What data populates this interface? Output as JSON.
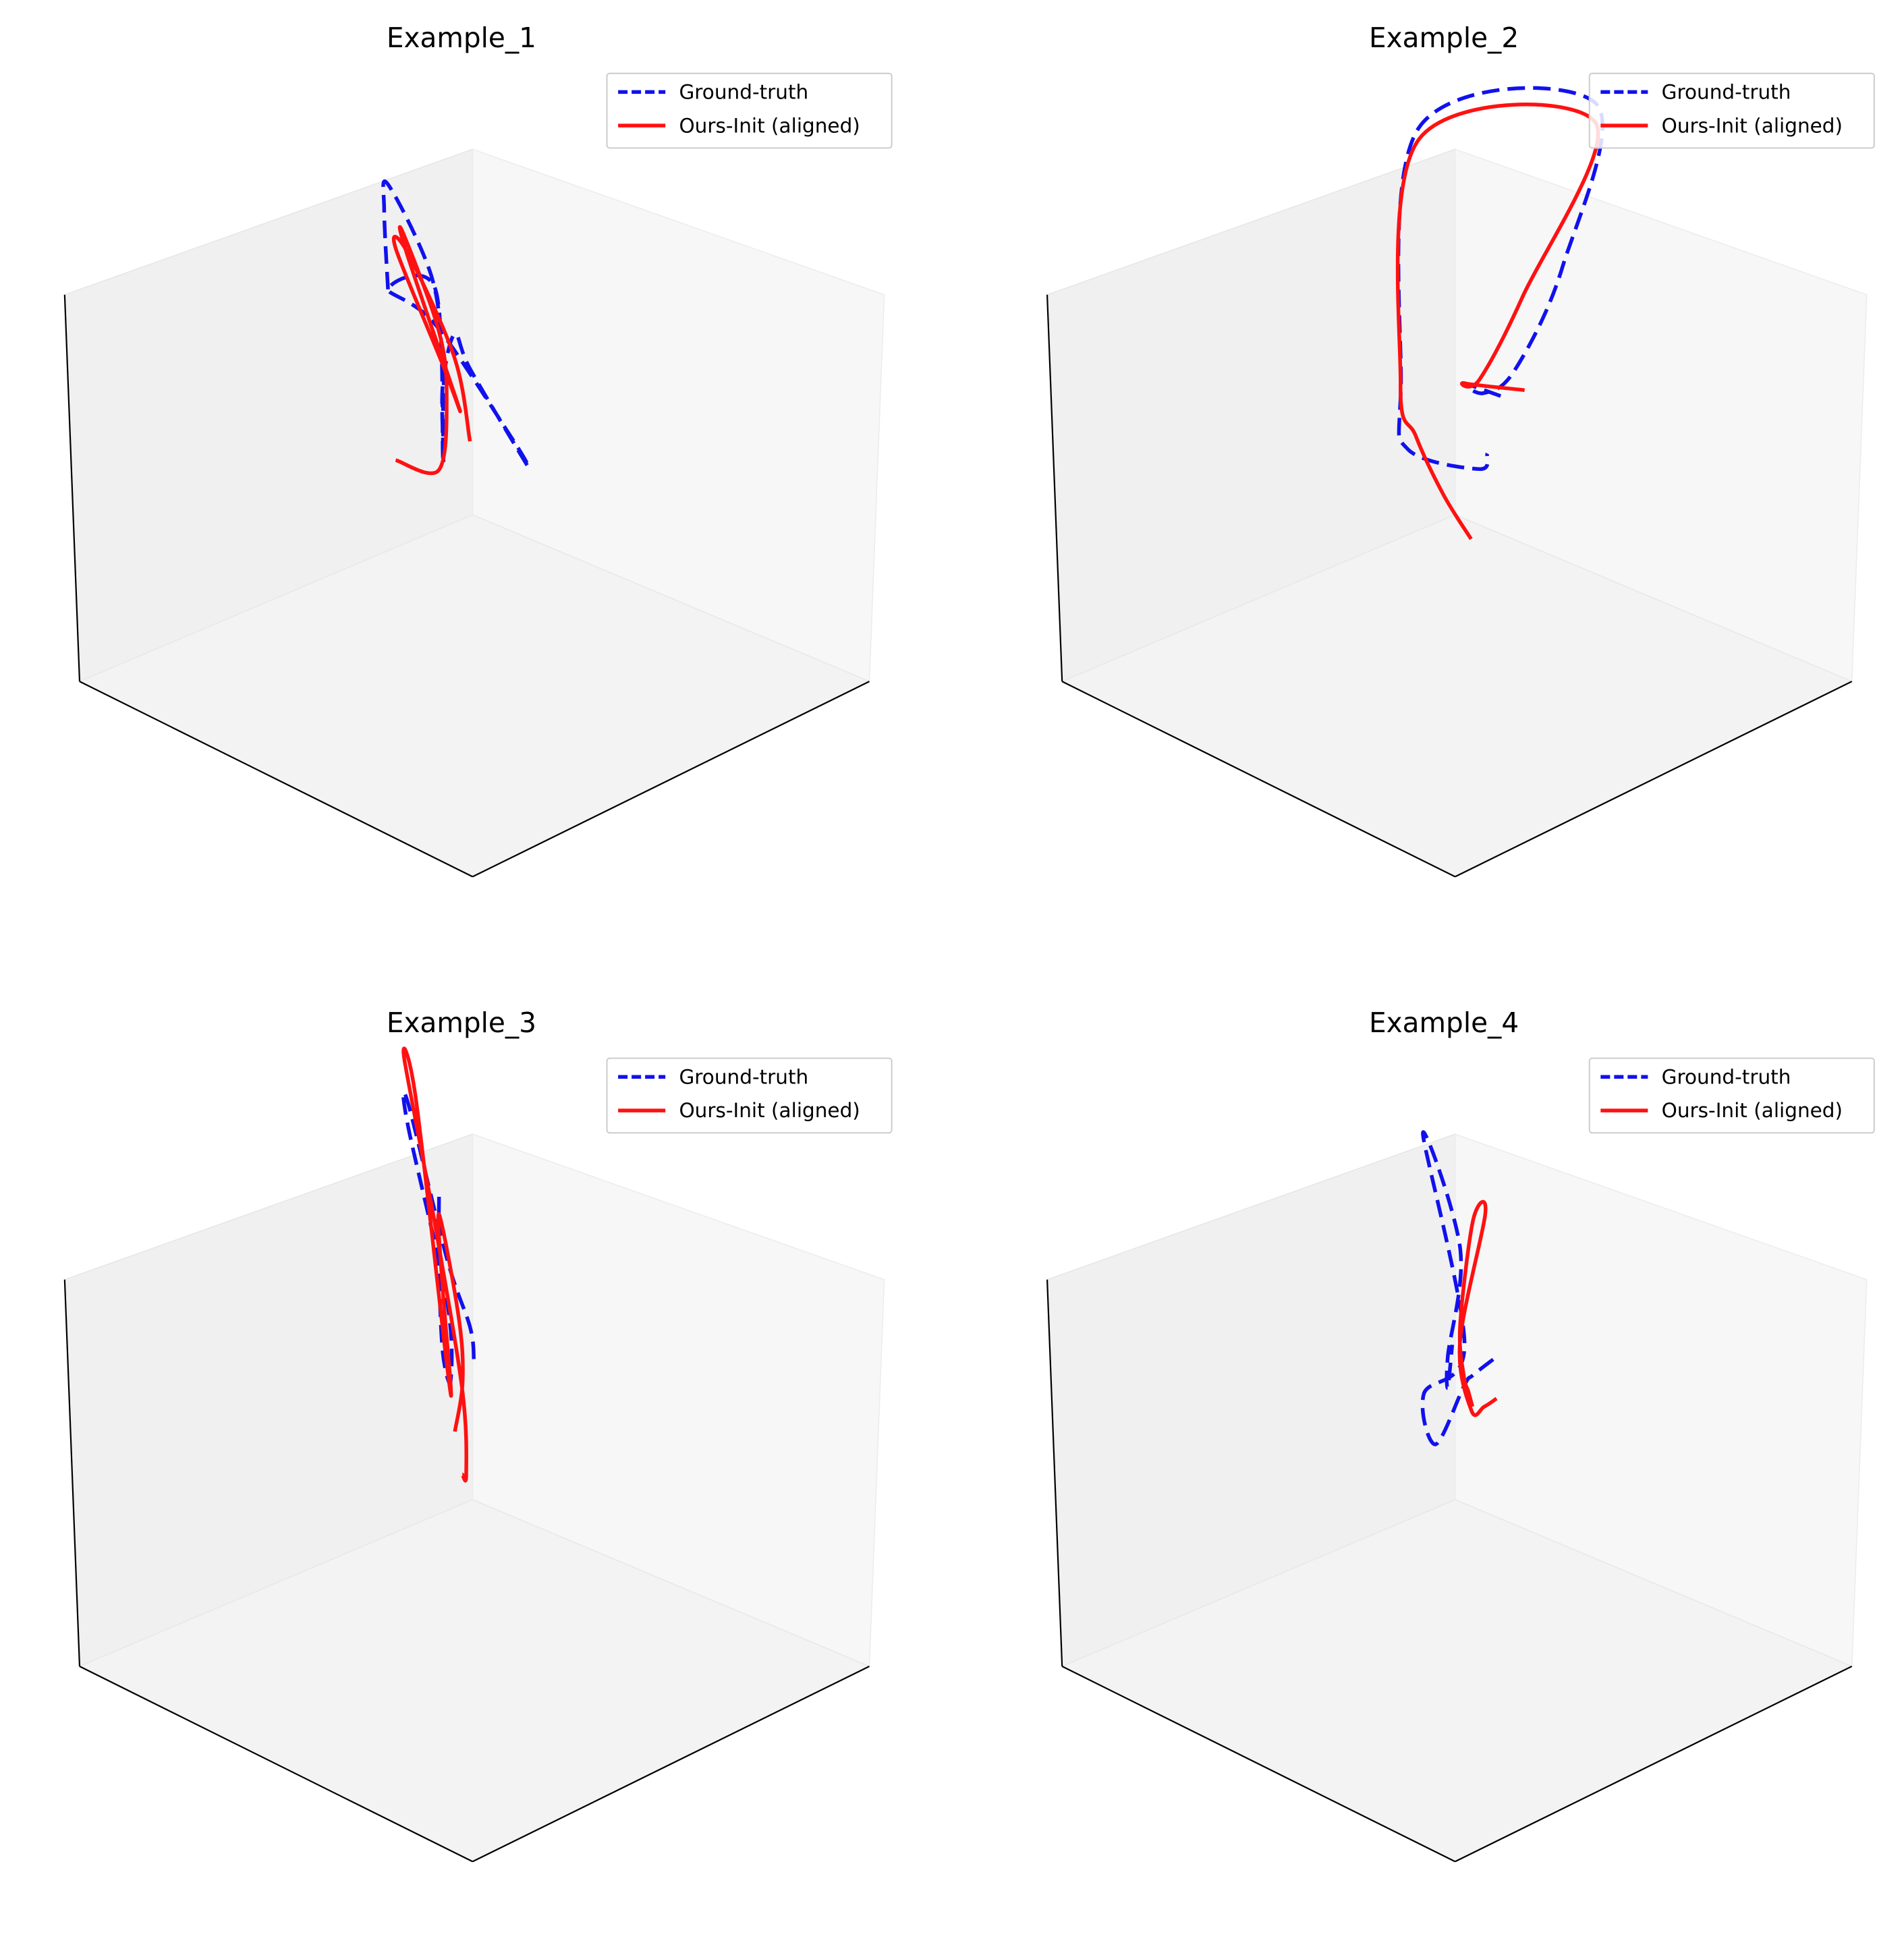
{
  "colors": {
    "ground_truth": "#1111ee",
    "ours_init": "#ff1111",
    "pane_left": "#f0f0f0",
    "pane_right": "#f7f7f7",
    "pane_floor": "#f3f3f3",
    "axis": "#000000"
  },
  "legend": {
    "ground_truth_label": "Ground-truth",
    "ours_label": "Ours-Init (aligned)",
    "placement": "top-right"
  },
  "chart_data": [
    {
      "type": "line3d",
      "title": "Example_1",
      "ticks": "none",
      "series": [
        {
          "name": "Ground-truth",
          "style": "dashed",
          "points": [
            [
              0.28,
              0.5,
              0.6
            ],
            [
              0.25,
              0.52,
              0.72
            ],
            [
              0.25,
              0.53,
              0.76
            ],
            [
              0.36,
              0.53,
              0.64
            ],
            [
              0.46,
              0.46,
              0.55
            ],
            [
              0.46,
              0.46,
              0.45
            ],
            [
              0.44,
              0.48,
              0.37
            ],
            [
              0.34,
              0.56,
              0.6
            ],
            [
              0.28,
              0.5,
              0.6
            ],
            [
              0.4,
              0.5,
              0.58
            ],
            [
              0.62,
              0.48,
              0.46
            ],
            [
              0.66,
              0.47,
              0.44
            ],
            [
              0.56,
              0.43,
              0.58
            ],
            [
              0.48,
              0.47,
              0.6
            ],
            [
              0.44,
              0.48,
              0.5
            ],
            [
              0.44,
              0.48,
              0.4
            ]
          ]
        },
        {
          "name": "Ours-Init (aligned)",
          "style": "solid",
          "points": [
            [
              0.34,
              0.46,
              0.34
            ],
            [
              0.48,
              0.43,
              0.38
            ],
            [
              0.51,
              0.42,
              0.52
            ],
            [
              0.51,
              0.4,
              0.64
            ],
            [
              0.44,
              0.38,
              0.79
            ],
            [
              0.44,
              0.39,
              0.75
            ],
            [
              0.52,
              0.44,
              0.5
            ],
            [
              0.44,
              0.48,
              0.53
            ],
            [
              0.32,
              0.48,
              0.69
            ],
            [
              0.36,
              0.47,
              0.7
            ],
            [
              0.54,
              0.41,
              0.6
            ],
            [
              0.64,
              0.35,
              0.51
            ]
          ]
        }
      ]
    },
    {
      "type": "line3d",
      "title": "Example_2",
      "ticks": "none",
      "series": [
        {
          "name": "Ground-truth",
          "style": "dashed",
          "points": [
            [
              0.48,
              0.63,
              0.44
            ],
            [
              0.7,
              0.32,
              0.64
            ],
            [
              0.81,
              0.26,
              0.68
            ],
            [
              0.94,
              0.21,
              0.78
            ],
            [
              0.93,
              0.34,
              0.91
            ],
            [
              0.58,
              0.77,
              0.93
            ],
            [
              0.06,
              0.84,
              0.69
            ],
            [
              0.65,
              0.21,
              0.65
            ],
            [
              0.8,
              0.08,
              0.64
            ],
            [
              0.94,
              0.12,
              0.64
            ],
            [
              0.88,
              0.2,
              0.62
            ]
          ]
        },
        {
          "name": "Ours-Init (aligned)",
          "style": "solid",
          "points": [
            [
              0.45,
              0.72,
              0.41
            ],
            [
              0.7,
              0.32,
              0.64
            ],
            [
              0.86,
              0.2,
              0.74
            ],
            [
              0.94,
              0.23,
              0.9
            ],
            [
              0.6,
              0.75,
              0.91
            ],
            [
              0.06,
              0.84,
              0.67
            ],
            [
              0.74,
              0.12,
              0.72
            ],
            [
              0.88,
              0.02,
              0.71
            ],
            [
              0.96,
              0.01,
              0.64
            ],
            [
              0.96,
              0.08,
              0.54
            ]
          ]
        }
      ]
    },
    {
      "type": "line3d",
      "title": "Example_3",
      "ticks": "none",
      "series": [
        {
          "name": "Ground-truth",
          "style": "dashed",
          "points": [
            [
              0.43,
              0.48,
              0.79
            ],
            [
              0.46,
              0.45,
              0.69
            ],
            [
              0.49,
              0.43,
              0.56
            ],
            [
              0.5,
              0.44,
              0.51
            ],
            [
              0.41,
              0.52,
              0.59
            ],
            [
              0.21,
              0.62,
              0.79
            ],
            [
              0.21,
              0.62,
              0.83
            ],
            [
              0.42,
              0.51,
              0.67
            ],
            [
              0.61,
              0.38,
              0.66
            ],
            [
              0.64,
              0.36,
              0.62
            ]
          ]
        },
        {
          "name": "Ours-Init (aligned)",
          "style": "solid",
          "points": [
            [
              0.44,
              0.51,
              0.38
            ],
            [
              0.47,
              0.5,
              0.48
            ],
            [
              0.48,
              0.48,
              0.6
            ],
            [
              0.43,
              0.48,
              0.76
            ],
            [
              0.48,
              0.44,
              0.66
            ],
            [
              0.52,
              0.42,
              0.52
            ],
            [
              0.48,
              0.45,
              0.53
            ],
            [
              0.24,
              0.61,
              0.85
            ],
            [
              0.18,
              0.64,
              0.89
            ],
            [
              0.38,
              0.52,
              0.71
            ],
            [
              0.54,
              0.43,
              0.51
            ],
            [
              0.58,
              0.4,
              0.39
            ],
            [
              0.56,
              0.41,
              0.38
            ]
          ]
        }
      ]
    },
    {
      "type": "line3d",
      "title": "Example_4",
      "ticks": "none",
      "series": [
        {
          "name": "Ground-truth",
          "style": "dashed",
          "points": [
            [
              0.37,
              0.72,
              0.41
            ],
            [
              0.55,
              0.49,
              0.52
            ],
            [
              0.67,
              0.35,
              0.59
            ],
            [
              0.92,
              0.03,
              0.68
            ],
            [
              0.88,
              0.04,
              0.75
            ],
            [
              0.58,
              0.44,
              0.6
            ],
            [
              0.06,
              0.85,
              0.65
            ],
            [
              0.66,
              0.35,
              0.82
            ],
            [
              0.83,
              0.15,
              0.76
            ],
            [
              0.82,
              0.16,
              0.7
            ],
            [
              0.7,
              0.29,
              0.69
            ]
          ]
        },
        {
          "name": "Ours-Init (aligned)",
          "style": "solid",
          "points": [
            [
              0.52,
              0.58,
              0.44
            ],
            [
              0.66,
              0.41,
              0.53
            ],
            [
              0.82,
              0.22,
              0.64
            ],
            [
              0.78,
              0.23,
              0.74
            ],
            [
              0.36,
              0.71,
              0.66
            ],
            [
              0.42,
              0.62,
              0.7
            ],
            [
              0.72,
              0.29,
              0.73
            ],
            [
              0.78,
              0.24,
              0.68
            ],
            [
              0.66,
              0.37,
              0.57
            ],
            [
              0.6,
              0.44,
              0.5
            ]
          ]
        }
      ]
    }
  ]
}
